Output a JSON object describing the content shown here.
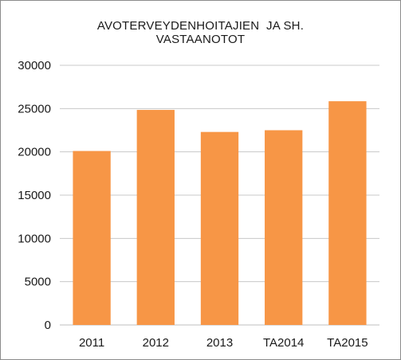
{
  "chart_data": {
    "type": "bar",
    "title_lines": [
      "AVOTERVEYDENHOITAJIEN  JA SH.",
      "VASTAANOTOT"
    ],
    "categories": [
      "2011",
      "2012",
      "2013",
      "TA2014",
      "TA2015"
    ],
    "values": [
      20100,
      24850,
      22300,
      22500,
      25850
    ],
    "ylim": [
      0,
      30000
    ],
    "yticks": [
      0,
      5000,
      10000,
      15000,
      20000,
      25000,
      30000
    ],
    "grid": true,
    "legend": "none",
    "bar_color": "#f79646",
    "grid_color": "#c8c8c8"
  }
}
